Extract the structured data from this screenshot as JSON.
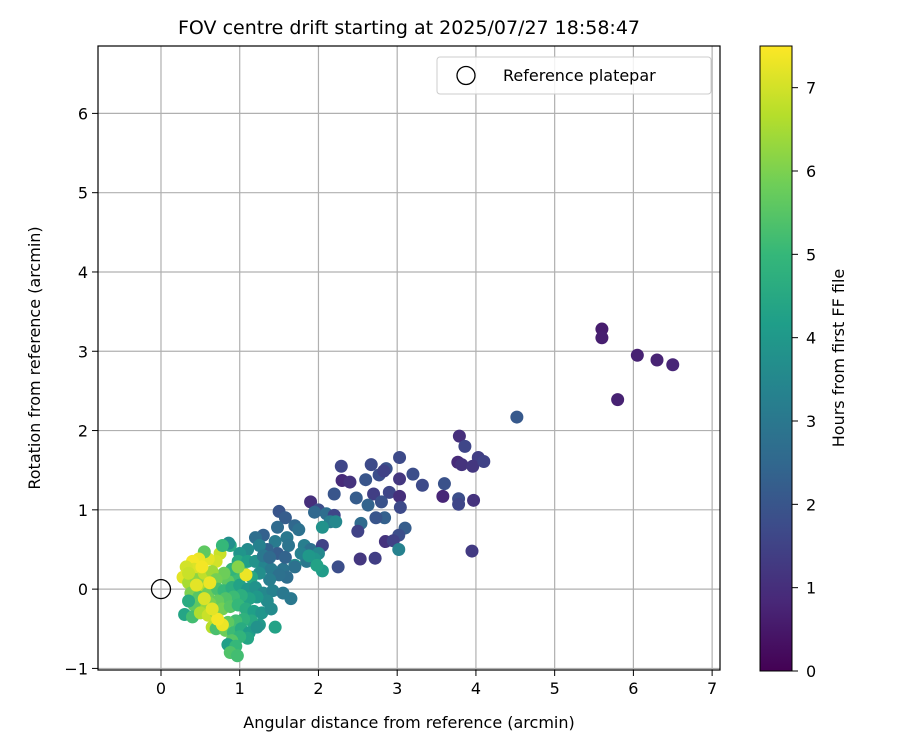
{
  "chart_data": {
    "type": "scatter",
    "title": "FOV centre drift starting at 2025/07/27 18:58:47",
    "xlabel": "Angular distance from reference (arcmin)",
    "ylabel": "Rotation from reference (arcmin)",
    "xlim": [
      -0.8,
      7.1
    ],
    "ylim": [
      -1.02,
      6.85
    ],
    "xticks": [
      0,
      1,
      2,
      3,
      4,
      5,
      6,
      7
    ],
    "yticks": [
      -1,
      0,
      1,
      2,
      3,
      4,
      5,
      6
    ],
    "grid": true,
    "legend": {
      "position": "top-right",
      "entries": [
        {
          "label": "Reference platepar",
          "marker": "open-circle",
          "color": "#000000"
        }
      ]
    },
    "reference_point": {
      "x": 0,
      "y": 0
    },
    "colorbar": {
      "label": "Hours from first FF file",
      "range": [
        0,
        7.5
      ],
      "ticks": [
        0,
        1,
        2,
        3,
        4,
        5,
        6,
        7
      ],
      "colormap": "viridis",
      "colors": [
        "#440154",
        "#482878",
        "#3e4989",
        "#31688e",
        "#26828e",
        "#1f9e89",
        "#35b779",
        "#6ece58",
        "#b5de2b",
        "#fde725"
      ]
    },
    "points": [
      {
        "x": 5.6,
        "y": 3.28,
        "t": 0.6
      },
      {
        "x": 5.6,
        "y": 3.17,
        "t": 0.65
      },
      {
        "x": 6.05,
        "y": 2.95,
        "t": 0.7
      },
      {
        "x": 6.3,
        "y": 2.89,
        "t": 0.75
      },
      {
        "x": 6.5,
        "y": 2.83,
        "t": 0.8
      },
      {
        "x": 5.8,
        "y": 2.39,
        "t": 0.7
      },
      {
        "x": 4.52,
        "y": 2.17,
        "t": 2.1
      },
      {
        "x": 3.79,
        "y": 1.93,
        "t": 1.0
      },
      {
        "x": 3.86,
        "y": 1.8,
        "t": 1.6
      },
      {
        "x": 4.03,
        "y": 1.66,
        "t": 1.4
      },
      {
        "x": 3.77,
        "y": 1.6,
        "t": 0.9
      },
      {
        "x": 3.82,
        "y": 1.57,
        "t": 1.1
      },
      {
        "x": 3.96,
        "y": 1.55,
        "t": 1.2
      },
      {
        "x": 4.1,
        "y": 1.61,
        "t": 1.5
      },
      {
        "x": 3.03,
        "y": 1.66,
        "t": 1.7
      },
      {
        "x": 3.2,
        "y": 1.45,
        "t": 1.8
      },
      {
        "x": 3.32,
        "y": 1.31,
        "t": 1.7
      },
      {
        "x": 3.6,
        "y": 1.33,
        "t": 1.9
      },
      {
        "x": 3.78,
        "y": 1.14,
        "t": 1.8
      },
      {
        "x": 3.97,
        "y": 1.12,
        "t": 1.1
      },
      {
        "x": 3.58,
        "y": 1.17,
        "t": 0.8
      },
      {
        "x": 3.78,
        "y": 1.07,
        "t": 1.6
      },
      {
        "x": 3.95,
        "y": 0.48,
        "t": 1.3
      },
      {
        "x": 2.29,
        "y": 1.55,
        "t": 1.6
      },
      {
        "x": 2.67,
        "y": 1.57,
        "t": 1.7
      },
      {
        "x": 2.86,
        "y": 1.52,
        "t": 1.9
      },
      {
        "x": 2.77,
        "y": 1.44,
        "t": 1.8
      },
      {
        "x": 2.83,
        "y": 1.49,
        "t": 1.5
      },
      {
        "x": 3.03,
        "y": 1.39,
        "t": 1.2
      },
      {
        "x": 2.6,
        "y": 1.38,
        "t": 2.0
      },
      {
        "x": 2.3,
        "y": 1.37,
        "t": 0.9
      },
      {
        "x": 2.4,
        "y": 1.35,
        "t": 1.1
      },
      {
        "x": 2.2,
        "y": 1.2,
        "t": 2.0
      },
      {
        "x": 2.48,
        "y": 1.15,
        "t": 2.2
      },
      {
        "x": 2.7,
        "y": 1.2,
        "t": 1.4
      },
      {
        "x": 2.9,
        "y": 1.22,
        "t": 1.6
      },
      {
        "x": 3.03,
        "y": 1.17,
        "t": 1.0
      },
      {
        "x": 2.63,
        "y": 1.06,
        "t": 2.4
      },
      {
        "x": 2.8,
        "y": 1.1,
        "t": 1.9
      },
      {
        "x": 3.04,
        "y": 1.03,
        "t": 1.7
      },
      {
        "x": 2.84,
        "y": 0.9,
        "t": 2.3
      },
      {
        "x": 2.73,
        "y": 0.9,
        "t": 2.0
      },
      {
        "x": 2.54,
        "y": 0.83,
        "t": 2.6
      },
      {
        "x": 2.5,
        "y": 0.73,
        "t": 1.5
      },
      {
        "x": 3.1,
        "y": 0.77,
        "t": 2.2
      },
      {
        "x": 3.02,
        "y": 0.68,
        "t": 1.8
      },
      {
        "x": 2.85,
        "y": 0.6,
        "t": 1.1
      },
      {
        "x": 2.95,
        "y": 0.61,
        "t": 1.5
      },
      {
        "x": 3.02,
        "y": 0.5,
        "t": 3.3
      },
      {
        "x": 2.53,
        "y": 0.38,
        "t": 1.2
      },
      {
        "x": 2.72,
        "y": 0.39,
        "t": 1.4
      },
      {
        "x": 1.9,
        "y": 1.1,
        "t": 1.0
      },
      {
        "x": 2.0,
        "y": 1.0,
        "t": 1.8
      },
      {
        "x": 1.95,
        "y": 0.97,
        "t": 2.5
      },
      {
        "x": 2.1,
        "y": 0.95,
        "t": 2.7
      },
      {
        "x": 2.2,
        "y": 0.93,
        "t": 1.6
      },
      {
        "x": 2.15,
        "y": 0.85,
        "t": 3.2
      },
      {
        "x": 2.05,
        "y": 0.78,
        "t": 3.8
      },
      {
        "x": 2.22,
        "y": 0.85,
        "t": 3.5
      },
      {
        "x": 1.5,
        "y": 0.98,
        "t": 2.0
      },
      {
        "x": 1.58,
        "y": 0.9,
        "t": 2.2
      },
      {
        "x": 1.7,
        "y": 0.8,
        "t": 2.5
      },
      {
        "x": 1.75,
        "y": 0.75,
        "t": 2.8
      },
      {
        "x": 1.48,
        "y": 0.78,
        "t": 2.6
      },
      {
        "x": 1.3,
        "y": 0.68,
        "t": 2.3
      },
      {
        "x": 1.2,
        "y": 0.65,
        "t": 2.7
      },
      {
        "x": 1.6,
        "y": 0.65,
        "t": 3.0
      },
      {
        "x": 1.62,
        "y": 0.55,
        "t": 2.9
      },
      {
        "x": 1.45,
        "y": 0.6,
        "t": 3.1
      },
      {
        "x": 1.82,
        "y": 0.55,
        "t": 3.2
      },
      {
        "x": 1.9,
        "y": 0.5,
        "t": 2.8
      },
      {
        "x": 2.05,
        "y": 0.55,
        "t": 1.5
      },
      {
        "x": 2.0,
        "y": 0.45,
        "t": 3.5
      },
      {
        "x": 1.95,
        "y": 0.38,
        "t": 3.9
      },
      {
        "x": 1.85,
        "y": 0.35,
        "t": 3.0
      },
      {
        "x": 2.25,
        "y": 0.28,
        "t": 1.8
      },
      {
        "x": 2.05,
        "y": 0.23,
        "t": 4.1
      },
      {
        "x": 1.7,
        "y": 0.3,
        "t": 3.7
      },
      {
        "x": 1.55,
        "y": 0.25,
        "t": 2.9
      },
      {
        "x": 1.6,
        "y": 0.15,
        "t": 2.7
      },
      {
        "x": 1.65,
        "y": -0.12,
        "t": 3.0
      },
      {
        "x": 1.48,
        "y": 0.45,
        "t": 2.2
      },
      {
        "x": 1.35,
        "y": 0.5,
        "t": 2.4
      },
      {
        "x": 1.25,
        "y": 0.55,
        "t": 3.3
      },
      {
        "x": 1.1,
        "y": 0.5,
        "t": 3.6
      },
      {
        "x": 1.0,
        "y": 0.45,
        "t": 3.9
      },
      {
        "x": 0.98,
        "y": 0.35,
        "t": 4.5
      },
      {
        "x": 1.1,
        "y": 0.35,
        "t": 4.2
      },
      {
        "x": 1.2,
        "y": 0.35,
        "t": 3.8
      },
      {
        "x": 1.32,
        "y": 0.3,
        "t": 3.4
      },
      {
        "x": 1.4,
        "y": 0.25,
        "t": 3.1
      },
      {
        "x": 1.5,
        "y": 0.18,
        "t": 2.8
      },
      {
        "x": 1.38,
        "y": 0.12,
        "t": 3.2
      },
      {
        "x": 1.25,
        "y": 0.2,
        "t": 3.7
      },
      {
        "x": 1.15,
        "y": 0.15,
        "t": 4.4
      },
      {
        "x": 1.05,
        "y": 0.2,
        "t": 4.8
      },
      {
        "x": 0.95,
        "y": 0.15,
        "t": 5.1
      },
      {
        "x": 0.85,
        "y": 0.1,
        "t": 5.6
      },
      {
        "x": 0.9,
        "y": 0.25,
        "t": 4.9
      },
      {
        "x": 0.8,
        "y": 0.2,
        "t": 5.8
      },
      {
        "x": 0.88,
        "y": 0.55,
        "t": 4.5
      },
      {
        "x": 0.75,
        "y": 0.45,
        "t": 6.9
      },
      {
        "x": 0.7,
        "y": 0.35,
        "t": 7.0
      },
      {
        "x": 0.6,
        "y": 0.38,
        "t": 7.2
      },
      {
        "x": 0.55,
        "y": 0.47,
        "t": 5.6
      },
      {
        "x": 0.48,
        "y": 0.38,
        "t": 7.3
      },
      {
        "x": 0.4,
        "y": 0.35,
        "t": 7.4
      },
      {
        "x": 0.42,
        "y": 0.25,
        "t": 7.1
      },
      {
        "x": 0.32,
        "y": 0.28,
        "t": 7.0
      },
      {
        "x": 0.28,
        "y": 0.15,
        "t": 7.2
      },
      {
        "x": 0.35,
        "y": 0.08,
        "t": 6.5
      },
      {
        "x": 0.45,
        "y": 0.12,
        "t": 6.2
      },
      {
        "x": 0.55,
        "y": 0.2,
        "t": 6.8
      },
      {
        "x": 0.65,
        "y": 0.22,
        "t": 6.4
      },
      {
        "x": 0.7,
        "y": 0.12,
        "t": 5.9
      },
      {
        "x": 0.58,
        "y": 0.05,
        "t": 6.1
      },
      {
        "x": 0.5,
        "y": 0.0,
        "t": 6.6
      },
      {
        "x": 0.38,
        "y": -0.05,
        "t": 6.0
      },
      {
        "x": 0.48,
        "y": -0.1,
        "t": 5.5
      },
      {
        "x": 0.6,
        "y": -0.05,
        "t": 5.8
      },
      {
        "x": 0.72,
        "y": 0.0,
        "t": 5.3
      },
      {
        "x": 0.8,
        "y": -0.02,
        "t": 5.0
      },
      {
        "x": 0.9,
        "y": 0.02,
        "t": 4.7
      },
      {
        "x": 1.0,
        "y": 0.05,
        "t": 4.3
      },
      {
        "x": 1.1,
        "y": 0.0,
        "t": 4.0
      },
      {
        "x": 1.2,
        "y": 0.02,
        "t": 3.8
      },
      {
        "x": 1.3,
        "y": -0.05,
        "t": 3.5
      },
      {
        "x": 1.42,
        "y": -0.02,
        "t": 3.3
      },
      {
        "x": 1.55,
        "y": -0.05,
        "t": 3.0
      },
      {
        "x": 1.35,
        "y": -0.15,
        "t": 3.6
      },
      {
        "x": 1.22,
        "y": -0.1,
        "t": 4.0
      },
      {
        "x": 1.12,
        "y": -0.12,
        "t": 4.3
      },
      {
        "x": 1.02,
        "y": -0.08,
        "t": 4.7
      },
      {
        "x": 0.92,
        "y": -0.1,
        "t": 5.1
      },
      {
        "x": 0.82,
        "y": -0.12,
        "t": 5.4
      },
      {
        "x": 0.72,
        "y": -0.15,
        "t": 5.7
      },
      {
        "x": 0.62,
        "y": -0.18,
        "t": 6.0
      },
      {
        "x": 0.52,
        "y": -0.22,
        "t": 6.3
      },
      {
        "x": 0.42,
        "y": -0.2,
        "t": 5.6
      },
      {
        "x": 0.35,
        "y": -0.15,
        "t": 4.6
      },
      {
        "x": 0.3,
        "y": -0.32,
        "t": 4.4
      },
      {
        "x": 0.4,
        "y": -0.35,
        "t": 5.2
      },
      {
        "x": 0.5,
        "y": -0.3,
        "t": 6.6
      },
      {
        "x": 0.6,
        "y": -0.33,
        "t": 6.9
      },
      {
        "x": 0.7,
        "y": -0.3,
        "t": 6.4
      },
      {
        "x": 0.78,
        "y": -0.25,
        "t": 5.9
      },
      {
        "x": 0.88,
        "y": -0.22,
        "t": 5.5
      },
      {
        "x": 0.98,
        "y": -0.2,
        "t": 5.0
      },
      {
        "x": 1.08,
        "y": -0.25,
        "t": 4.6
      },
      {
        "x": 1.18,
        "y": -0.28,
        "t": 4.2
      },
      {
        "x": 1.28,
        "y": -0.3,
        "t": 3.9
      },
      {
        "x": 1.4,
        "y": -0.25,
        "t": 3.6
      },
      {
        "x": 1.45,
        "y": -0.48,
        "t": 4.3
      },
      {
        "x": 1.25,
        "y": -0.45,
        "t": 4.0
      },
      {
        "x": 1.15,
        "y": -0.4,
        "t": 4.5
      },
      {
        "x": 1.05,
        "y": -0.38,
        "t": 4.8
      },
      {
        "x": 0.95,
        "y": -0.4,
        "t": 5.2
      },
      {
        "x": 0.85,
        "y": -0.42,
        "t": 5.6
      },
      {
        "x": 0.75,
        "y": -0.45,
        "t": 6.2
      },
      {
        "x": 0.65,
        "y": -0.48,
        "t": 6.7
      },
      {
        "x": 0.7,
        "y": -0.5,
        "t": 5.3
      },
      {
        "x": 0.82,
        "y": -0.52,
        "t": 5.8
      },
      {
        "x": 0.92,
        "y": -0.55,
        "t": 5.1
      },
      {
        "x": 1.02,
        "y": -0.5,
        "t": 4.6
      },
      {
        "x": 1.12,
        "y": -0.55,
        "t": 4.1
      },
      {
        "x": 1.22,
        "y": -0.48,
        "t": 3.8
      },
      {
        "x": 1.1,
        "y": -0.62,
        "t": 4.4
      },
      {
        "x": 1.0,
        "y": -0.6,
        "t": 4.9
      },
      {
        "x": 0.9,
        "y": -0.65,
        "t": 5.5
      },
      {
        "x": 0.85,
        "y": -0.7,
        "t": 4.2
      },
      {
        "x": 0.95,
        "y": -0.72,
        "t": 5.0
      },
      {
        "x": 0.88,
        "y": -0.8,
        "t": 5.4
      },
      {
        "x": 0.97,
        "y": -0.84,
        "t": 5.2
      },
      {
        "x": 0.78,
        "y": -0.45,
        "t": 7.3
      },
      {
        "x": 0.72,
        "y": -0.38,
        "t": 7.4
      },
      {
        "x": 0.65,
        "y": -0.25,
        "t": 7.2
      },
      {
        "x": 0.55,
        "y": -0.12,
        "t": 7.1
      },
      {
        "x": 0.62,
        "y": 0.08,
        "t": 7.3
      },
      {
        "x": 0.52,
        "y": 0.28,
        "t": 7.4
      },
      {
        "x": 0.45,
        "y": 0.05,
        "t": 7.2
      },
      {
        "x": 0.35,
        "y": 0.2,
        "t": 6.9
      },
      {
        "x": 1.08,
        "y": 0.18,
        "t": 7.3
      },
      {
        "x": 0.98,
        "y": 0.28,
        "t": 6.1
      },
      {
        "x": 0.86,
        "y": 0.58,
        "t": 3.7
      },
      {
        "x": 0.78,
        "y": 0.55,
        "t": 5.0
      },
      {
        "x": 1.3,
        "y": 0.42,
        "t": 3.0
      },
      {
        "x": 1.38,
        "y": 0.4,
        "t": 2.6
      },
      {
        "x": 1.58,
        "y": 0.4,
        "t": 2.4
      },
      {
        "x": 1.7,
        "y": 0.28,
        "t": 2.8
      },
      {
        "x": 1.78,
        "y": 0.45,
        "t": 3.3
      },
      {
        "x": 1.88,
        "y": 0.42,
        "t": 4.0
      },
      {
        "x": 1.98,
        "y": 0.3,
        "t": 4.3
      }
    ]
  }
}
